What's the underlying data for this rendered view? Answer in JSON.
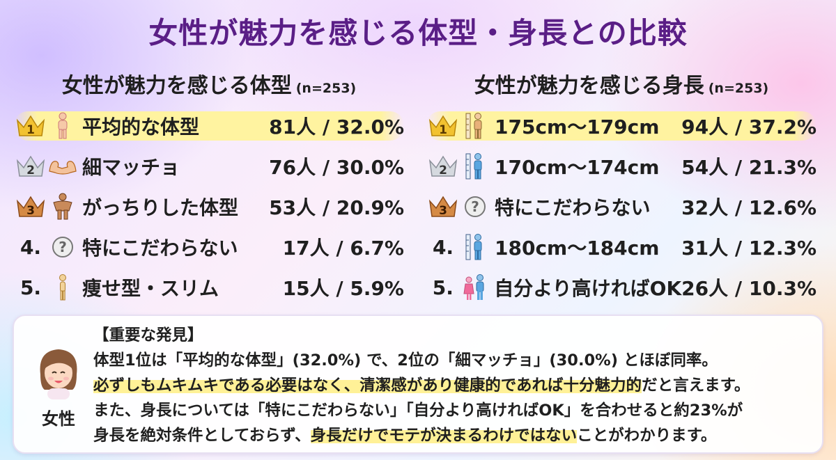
{
  "title": "女性が魅力を感じる体型・身長との比較",
  "body_type": {
    "title": "女性が魅力を感じる体型",
    "n": "(n=253)",
    "items": [
      {
        "rank": "1",
        "icon": "average-body-icon",
        "label": "平均的な体型",
        "value": "81人 / 32.0%"
      },
      {
        "rank": "2",
        "icon": "muscle-arms-icon",
        "label": "細マッチョ",
        "value": "76人 / 30.0%"
      },
      {
        "rank": "3",
        "icon": "muscular-body-icon",
        "label": "がっちりした体型",
        "value": "53人 / 20.9%"
      },
      {
        "rank": "4.",
        "icon": "question-icon",
        "label": "特にこだわらない",
        "value": "17人 / 6.7%"
      },
      {
        "rank": "5.",
        "icon": "slim-body-icon",
        "label": "痩せ型・スリム",
        "value": "15人 / 5.9%"
      }
    ]
  },
  "height": {
    "title": "女性が魅力を感じる身長",
    "n": "(n=253)",
    "items": [
      {
        "rank": "1",
        "icon": "height-person-icon",
        "label": "175cm～179cm",
        "value": "94人 / 37.2%"
      },
      {
        "rank": "2",
        "icon": "height-person-icon",
        "label": "170cm～174cm",
        "value": "54人 / 21.3%"
      },
      {
        "rank": "3",
        "icon": "question-icon",
        "label": "特にこだわらない",
        "value": "32人 / 12.6%"
      },
      {
        "rank": "4.",
        "icon": "height-person-icon",
        "label": "180cm～184cm",
        "value": "31人 / 12.3%"
      },
      {
        "rank": "5.",
        "icon": "couple-icon",
        "label": "自分より高ければOK",
        "value": "26人 / 10.3%"
      }
    ]
  },
  "note": {
    "heading": "【重要な発見】",
    "line1": "体型1位は「平均的な体型」(32.0%) で、2位の「細マッチョ」(30.0%) とほぼ同率。",
    "line2_highlight": "必ずしもムキムキである必要はなく、清潔感があり健康的であれば十分魅力的",
    "line2_rest": "だと言えます。",
    "line3": "また、身長については「特にこだわらない」「自分より高ければOK」を合わせると約23%が",
    "line4_a": "身長を絶対条件としておらず、",
    "line4_highlight": "身長だけでモテが決まるわけではない",
    "line4_b": "ことがわかります。",
    "avatar_label": "女性"
  },
  "colors": {
    "title": "#5a1e86",
    "highlight": "#fff3a0",
    "gold": "#f2c230",
    "silver": "#c9ced6",
    "bronze": "#d58a45"
  }
}
